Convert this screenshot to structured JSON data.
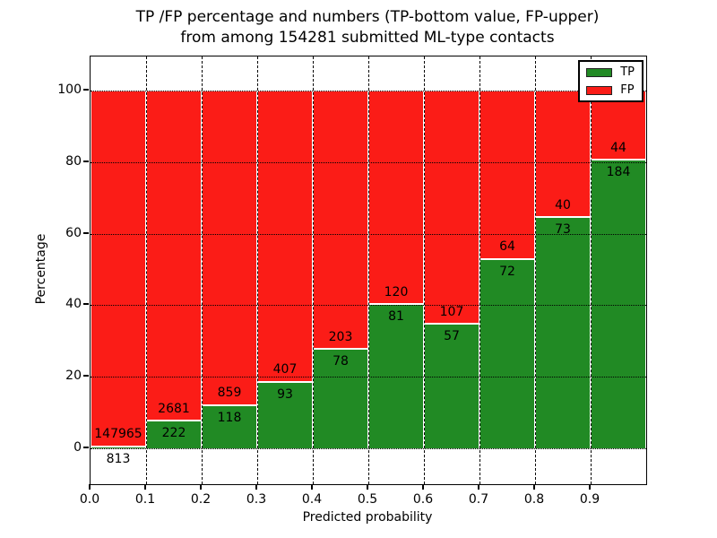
{
  "title": {
    "line1": "TP /FP percentage and numbers (TP-bottom value, FP-upper)",
    "line2": "from among 154281 submitted ML-type contacts"
  },
  "axes": {
    "xlabel": "Predicted probability",
    "ylabel": "Percentage"
  },
  "chart_data": {
    "type": "bar",
    "stacking": "percentage_stacked",
    "title": "TP /FP percentage and numbers (TP-bottom value, FP-upper) from among 154281 submitted ML-type contacts",
    "total_submitted_contacts": 154281,
    "xlabel": "Predicted probability",
    "ylabel": "Percentage",
    "bin_start": [
      0.0,
      0.1,
      0.2,
      0.3,
      0.4,
      0.5,
      0.6,
      0.7,
      0.8,
      0.9
    ],
    "bin_width": 0.1,
    "series": [
      {
        "name": "TP",
        "color": "#218a24",
        "counts": [
          813,
          222,
          118,
          93,
          78,
          81,
          57,
          72,
          73,
          184
        ],
        "percent_of_bin": [
          0.55,
          7.65,
          12.08,
          18.6,
          27.76,
          40.3,
          34.76,
          52.94,
          64.6,
          80.7
        ]
      },
      {
        "name": "FP",
        "color": "#fb1c17",
        "counts": [
          147965,
          2681,
          859,
          407,
          203,
          120,
          107,
          64,
          40,
          44
        ],
        "percent_of_bin": [
          99.45,
          92.35,
          87.92,
          81.4,
          72.24,
          59.7,
          65.24,
          47.06,
          35.4,
          19.3
        ]
      }
    ],
    "annotation_rule": "FP count shown above the TP/FP boundary, TP count shown below it",
    "xtick_labels": [
      "0.0",
      "0.1",
      "0.2",
      "0.3",
      "0.4",
      "0.5",
      "0.6",
      "0.7",
      "0.8",
      "0.9"
    ],
    "yticks": [
      0,
      20,
      40,
      60,
      80,
      100
    ],
    "xlim": [
      0.0,
      1.0
    ],
    "ylim": [
      -10,
      110
    ],
    "grid": {
      "style": "dotted",
      "color": "#000000"
    },
    "legend": {
      "position": "upper right",
      "labels": [
        "TP",
        "FP"
      ]
    },
    "colors": {
      "tp_green": "#218a24",
      "fp_red": "#fb1c17",
      "background": "#ffffff",
      "text": "#000000"
    }
  }
}
